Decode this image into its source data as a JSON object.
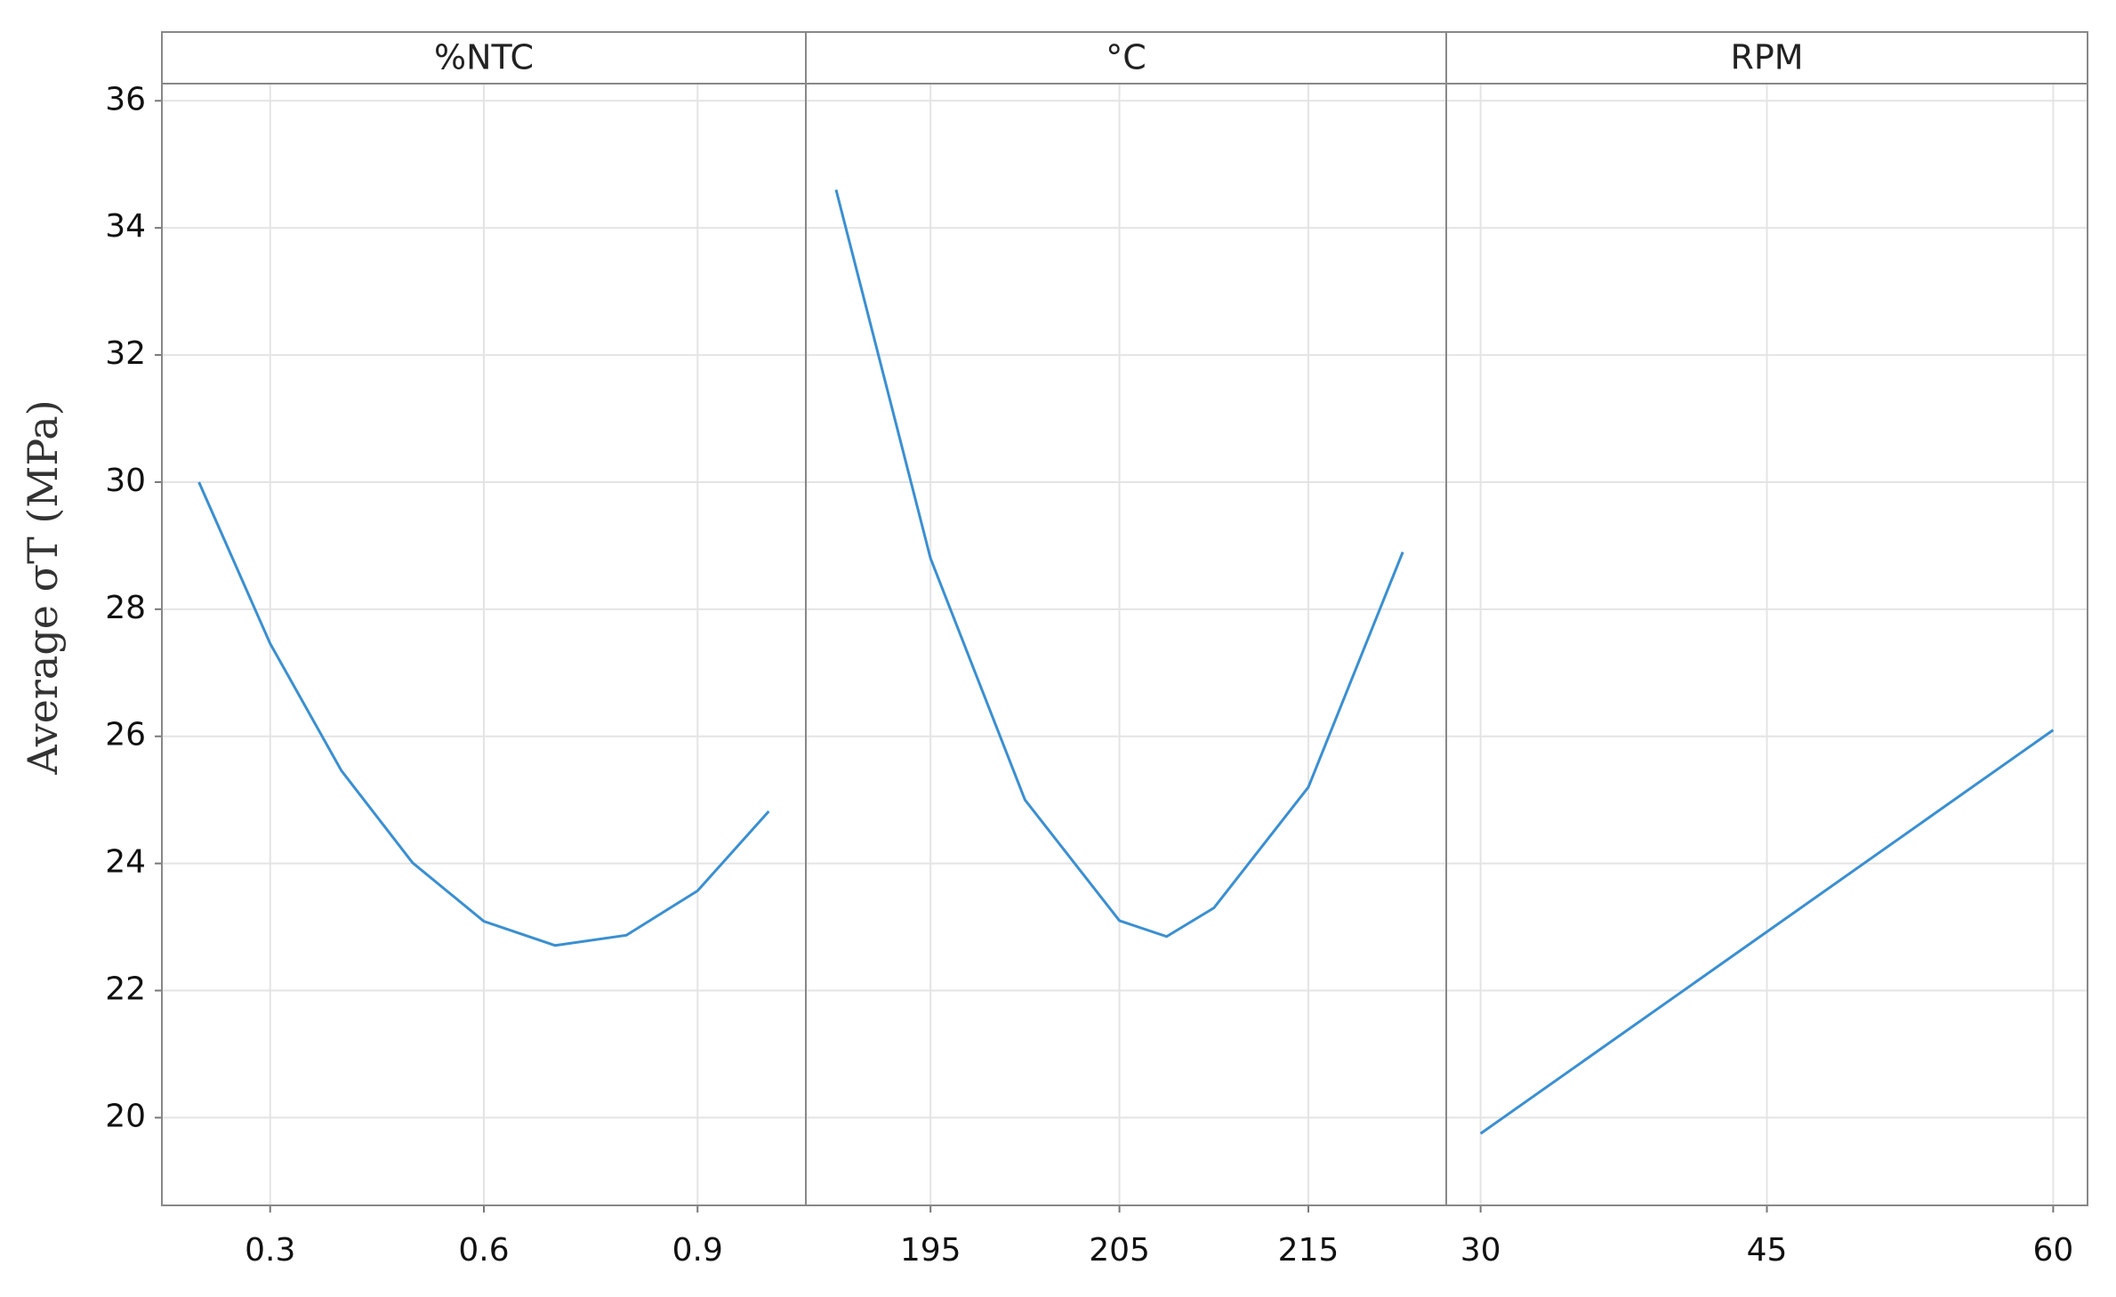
{
  "chart_data": [
    {
      "type": "line",
      "title": "%NTC",
      "ylabel": "Average σT (MPa)",
      "color": "#3a8fd1",
      "grid": true,
      "x": [
        0.2,
        0.3,
        0.4,
        0.5,
        0.6,
        0.7,
        0.8,
        0.9,
        1.0
      ],
      "values": [
        30.0,
        27.46,
        25.46,
        24.01,
        23.09,
        22.71,
        22.87,
        23.57,
        24.82
      ],
      "xlim": [
        0.148,
        1.052
      ],
      "xticks": [
        0.3,
        0.6,
        0.9
      ],
      "ylim": [
        18.62,
        36.27
      ],
      "yticks": [
        20,
        22,
        24,
        26,
        28,
        30,
        32,
        34,
        36
      ]
    },
    {
      "type": "line",
      "title": "°C",
      "color": "#3a8fd1",
      "grid": true,
      "x": [
        190,
        195,
        200,
        205,
        207.5,
        210,
        215,
        220
      ],
      "values": [
        34.6,
        28.8,
        25.0,
        23.1,
        22.85,
        23.3,
        25.2,
        28.9
      ],
      "xlim": [
        188.4,
        222.3
      ],
      "xticks": [
        195,
        205,
        215
      ],
      "ylim": [
        18.62,
        36.27
      ],
      "yticks": [
        20,
        22,
        24,
        26,
        28,
        30,
        32,
        34,
        36
      ]
    },
    {
      "type": "line",
      "title": "RPM",
      "color": "#3a8fd1",
      "grid": true,
      "x": [
        30,
        60
      ],
      "values": [
        19.75,
        26.1
      ],
      "xlim": [
        28.2,
        61.8
      ],
      "xticks": [
        30,
        45,
        60
      ],
      "ylim": [
        18.62,
        36.27
      ],
      "yticks": [
        20,
        22,
        24,
        26,
        28,
        30,
        32,
        34,
        36
      ]
    }
  ]
}
